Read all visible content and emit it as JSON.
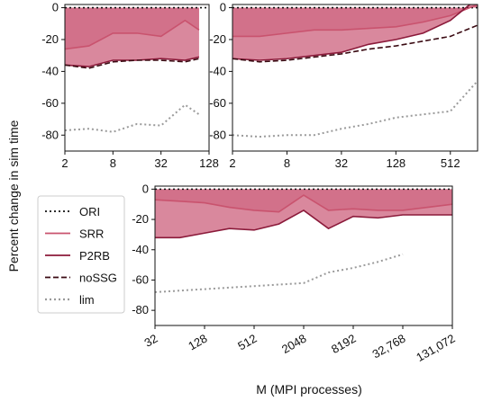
{
  "chart_data": [
    {
      "type": "area",
      "panel": "top-left",
      "xscale": "log2",
      "xlim": [
        2,
        128
      ],
      "ylim": [
        -90,
        2
      ],
      "xticks": [
        2,
        8,
        32,
        128
      ],
      "xtick_labels": [
        "2",
        "8",
        "32",
        "128"
      ],
      "yticks": [
        0,
        -20,
        -40,
        -60,
        -80
      ],
      "ytick_labels": [
        "0",
        "-20",
        "-40",
        "-60",
        "-80"
      ],
      "series": [
        {
          "name": "ORI",
          "color": "#111111",
          "style": "dotted",
          "x": [
            2,
            128
          ],
          "y": [
            0,
            0
          ]
        },
        {
          "name": "SRR",
          "color": "#c9536e",
          "style": "solid",
          "fill": true,
          "x": [
            2,
            4,
            8,
            16,
            32,
            64,
            96
          ],
          "y": [
            -26,
            -24,
            -16,
            -16,
            -18,
            -8,
            -14
          ]
        },
        {
          "name": "P2RB",
          "color": "#8b1a3a",
          "style": "solid",
          "fill": true,
          "x": [
            2,
            4,
            8,
            16,
            32,
            64,
            96
          ],
          "y": [
            -36,
            -37,
            -33,
            -33,
            -32,
            -33,
            -31
          ]
        },
        {
          "name": "noSSG",
          "color": "#3a0a12",
          "style": "dashed",
          "x": [
            2,
            4,
            8,
            16,
            32,
            64,
            96
          ],
          "y": [
            -36,
            -38,
            -34,
            -33,
            -33,
            -34,
            -32
          ]
        },
        {
          "name": "lim",
          "color": "#9a9a9a",
          "style": "dotted",
          "x": [
            2,
            4,
            8,
            16,
            32,
            64,
            96
          ],
          "y": [
            -77,
            -76,
            -78,
            -73,
            -74,
            -61,
            -67
          ]
        }
      ]
    },
    {
      "type": "area",
      "panel": "top-right",
      "xscale": "log2",
      "xlim": [
        2,
        1024
      ],
      "ylim": [
        -90,
        2
      ],
      "xticks": [
        2,
        8,
        32,
        128,
        512
      ],
      "xtick_labels": [
        "2",
        "8",
        "32",
        "128",
        "512"
      ],
      "yticks": [
        0,
        -20,
        -40,
        -60,
        -80
      ],
      "ytick_labels": [
        "0",
        "-20",
        "-40",
        "-60",
        "-80"
      ],
      "series": [
        {
          "name": "ORI",
          "color": "#111111",
          "style": "dotted",
          "x": [
            2,
            1024
          ],
          "y": [
            0,
            0
          ]
        },
        {
          "name": "SRR",
          "color": "#c9536e",
          "style": "solid",
          "fill": true,
          "x": [
            2,
            4,
            8,
            16,
            32,
            64,
            128,
            256,
            512,
            1024
          ],
          "y": [
            -18,
            -18,
            -16,
            -14,
            -14,
            -13,
            -12,
            -9,
            -5,
            2
          ]
        },
        {
          "name": "P2RB",
          "color": "#8b1a3a",
          "style": "solid",
          "fill": true,
          "x": [
            2,
            4,
            8,
            16,
            32,
            64,
            128,
            256,
            512,
            1024
          ],
          "y": [
            -32,
            -33,
            -32,
            -30,
            -28,
            -23,
            -20,
            -16,
            -8,
            6
          ]
        },
        {
          "name": "noSSG",
          "color": "#3a0a12",
          "style": "dashed",
          "x": [
            2,
            4,
            8,
            16,
            32,
            64,
            128,
            256,
            512,
            1024
          ],
          "y": [
            -32,
            -34,
            -33,
            -31,
            -29,
            -26,
            -24,
            -21,
            -18,
            -11
          ]
        },
        {
          "name": "lim",
          "color": "#9a9a9a",
          "style": "dotted",
          "x": [
            2,
            4,
            8,
            16,
            32,
            64,
            128,
            256,
            512,
            1024
          ],
          "y": [
            -80,
            -81,
            -80,
            -80,
            -76,
            -73,
            -69,
            -67,
            -65,
            -46
          ]
        }
      ]
    },
    {
      "type": "area",
      "panel": "bottom",
      "xscale": "log2",
      "xlim": [
        32,
        131072
      ],
      "ylim": [
        -90,
        2
      ],
      "xticks": [
        32,
        128,
        512,
        2048,
        8192,
        32768,
        131072
      ],
      "xtick_labels": [
        "32",
        "128",
        "512",
        "2048",
        "8192",
        "32,768",
        "131,072"
      ],
      "yticks": [
        0,
        -20,
        -40,
        -60,
        -80
      ],
      "ytick_labels": [
        "0",
        "-20",
        "-40",
        "-60",
        "-80"
      ],
      "xlabel": "M (MPI processes)",
      "series": [
        {
          "name": "ORI",
          "color": "#111111",
          "style": "dotted",
          "x": [
            32,
            131072
          ],
          "y": [
            0,
            0
          ]
        },
        {
          "name": "SRR",
          "color": "#c9536e",
          "style": "solid",
          "fill": true,
          "x": [
            32,
            64,
            128,
            256,
            512,
            1024,
            2048,
            4096,
            8192,
            16384,
            32768,
            65536,
            131072
          ],
          "y": [
            -7,
            -8,
            -9,
            -12,
            -14,
            -15,
            -4,
            -14,
            -13,
            -14,
            -14,
            -12,
            -10
          ]
        },
        {
          "name": "P2RB",
          "color": "#8b1a3a",
          "style": "solid",
          "fill": true,
          "x": [
            32,
            64,
            128,
            256,
            512,
            1024,
            2048,
            4096,
            8192,
            16384,
            32768,
            65536,
            131072
          ],
          "y": [
            -32,
            -32,
            -29,
            -26,
            -27,
            -23,
            -14,
            -26,
            -18,
            -19,
            -17,
            -17,
            -17
          ]
        },
        {
          "name": "lim",
          "color": "#9a9a9a",
          "style": "dotted",
          "x": [
            32,
            64,
            128,
            256,
            512,
            1024,
            2048,
            4096,
            8192,
            16384,
            32768
          ],
          "y": [
            -68,
            -67,
            -66,
            -65,
            -64,
            -63,
            -62,
            -55,
            -52,
            -48,
            -43
          ]
        }
      ]
    }
  ],
  "shared": {
    "ylabel": "Percent change in sim time",
    "legend": {
      "placement": "center-left",
      "entries": [
        {
          "label": "ORI",
          "color": "#111111",
          "style": "dotted"
        },
        {
          "label": "SRR",
          "color": "#c9536e",
          "style": "solid"
        },
        {
          "label": "P2RB",
          "color": "#8b1a3a",
          "style": "solid"
        },
        {
          "label": "noSSG",
          "color": "#3a0a12",
          "style": "dashed"
        },
        {
          "label": "lim",
          "color": "#9a9a9a",
          "style": "dotted"
        }
      ]
    },
    "colors": {
      "srr_fill": "#e3a3b4",
      "p2rb_fill": "#c95674"
    }
  }
}
